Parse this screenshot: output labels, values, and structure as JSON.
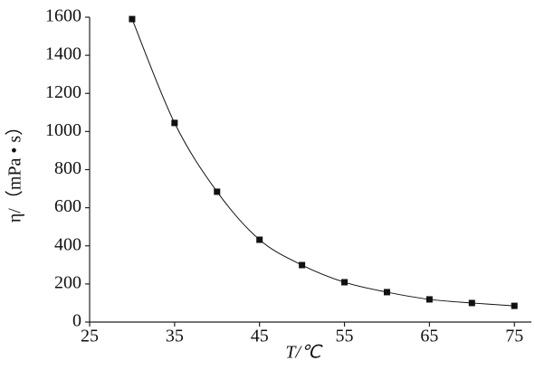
{
  "chart_data": {
    "type": "line",
    "x_label": "T/℃",
    "y_label": "η/（mPa • s）",
    "x": [
      30,
      35,
      40,
      45,
      50,
      55,
      60,
      65,
      70,
      75
    ],
    "series": [
      {
        "color": "#111111",
        "values": [
          1590,
          1045,
          684,
          432,
          299,
          209,
          157,
          119,
          100,
          85
        ]
      }
    ],
    "xlim": [
      25,
      77
    ],
    "xticks": [
      25,
      35,
      45,
      55,
      65,
      75
    ],
    "ylim": [
      0,
      1600
    ],
    "yticks": [
      0,
      200,
      400,
      600,
      800,
      1000,
      1200,
      1400,
      1600
    ],
    "grid": false,
    "smooth": true,
    "markers": "square"
  }
}
